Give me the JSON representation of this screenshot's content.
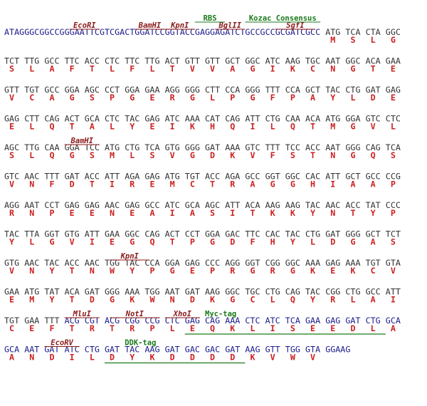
{
  "rows": [
    {
      "utr": "ATAGGGCGGCCGGGAATTCGTCGACTGGATCCGGTACCGAGGAGATCTGCCGCCGCGATCGCC",
      "codons": [
        "ATG",
        "TCA",
        "CTA",
        "GGC"
      ],
      "amino_acids": [
        "M",
        "S",
        "L",
        "G"
      ],
      "annotations": [
        {
          "label": "EcoRI",
          "color": "#8b1a1a"
        },
        {
          "label": "BamHI",
          "color": "#8b1a1a"
        },
        {
          "label": "KpnI",
          "color": "#8b1a1a"
        },
        {
          "label": "BglII",
          "color": "#8b1a1a"
        },
        {
          "label": "SgfI",
          "color": "#8b1a1a"
        },
        {
          "label": "RBS",
          "color": "#1a7a1a"
        },
        {
          "label": "Kozac Consensus",
          "color": "#1a7a1a"
        }
      ]
    },
    {
      "codons": [
        "TCT",
        "TTG",
        "GCC",
        "TTC",
        "ACC",
        "CTC",
        "TTC",
        "TTG",
        "ACT",
        "GTT",
        "GTT",
        "GCT",
        "GGC",
        "ATC",
        "AAG",
        "TGC",
        "AAT",
        "GGC",
        "ACA",
        "GAA"
      ],
      "amino_acids": [
        "S",
        "L",
        "A",
        "F",
        "T",
        "L",
        "F",
        "L",
        "T",
        "V",
        "V",
        "A",
        "G",
        "I",
        "K",
        "C",
        "N",
        "G",
        "T",
        "E"
      ]
    },
    {
      "codons": [
        "GTT",
        "TGT",
        "GCC",
        "GGA",
        "AGC",
        "CCT",
        "GGA",
        "GAA",
        "AGG",
        "GGG",
        "CTT",
        "CCA",
        "GGG",
        "TTT",
        "CCA",
        "GCT",
        "TAC",
        "CTG",
        "GAT",
        "GAG"
      ],
      "amino_acids": [
        "V",
        "C",
        "A",
        "G",
        "S",
        "P",
        "G",
        "E",
        "R",
        "G",
        "L",
        "P",
        "G",
        "F",
        "P",
        "A",
        "Y",
        "L",
        "D",
        "E"
      ]
    },
    {
      "codons": [
        "GAG",
        "CTT",
        "CAG",
        "ACT",
        "GCA",
        "CTC",
        "TAC",
        "GAG",
        "ATC",
        "AAA",
        "CAT",
        "CAG",
        "ATT",
        "CTG",
        "CAA",
        "ACA",
        "ATG",
        "GGA",
        "GTC",
        "CTC"
      ],
      "amino_acids": [
        "E",
        "L",
        "Q",
        "T",
        "A",
        "L",
        "Y",
        "E",
        "I",
        "K",
        "H",
        "Q",
        "I",
        "L",
        "Q",
        "T",
        "M",
        "G",
        "V",
        "L"
      ]
    },
    {
      "codons": [
        "AGC",
        "TTG",
        "CAA",
        "GGA",
        "TCC",
        "ATG",
        "CTG",
        "TCA",
        "GTG",
        "GGG",
        "GAT",
        "AAA",
        "GTC",
        "TTT",
        "TCC",
        "ACC",
        "AAT",
        "GGG",
        "CAG",
        "TCA"
      ],
      "amino_acids": [
        "S",
        "L",
        "Q",
        "G",
        "S",
        "M",
        "L",
        "S",
        "V",
        "G",
        "D",
        "K",
        "V",
        "F",
        "S",
        "T",
        "N",
        "G",
        "Q",
        "S"
      ],
      "annotations": [
        {
          "label": "BamHI",
          "color": "#8b1a1a"
        }
      ]
    },
    {
      "codons": [
        "GTC",
        "AAC",
        "TTT",
        "GAT",
        "ACC",
        "ATT",
        "AGA",
        "GAG",
        "ATG",
        "TGT",
        "ACC",
        "AGA",
        "GCC",
        "GGT",
        "GGC",
        "CAC",
        "ATT",
        "GCT",
        "GCC",
        "CCG"
      ],
      "amino_acids": [
        "V",
        "N",
        "F",
        "D",
        "T",
        "I",
        "R",
        "E",
        "M",
        "C",
        "T",
        "R",
        "A",
        "G",
        "G",
        "H",
        "I",
        "A",
        "A",
        "P"
      ]
    },
    {
      "codons": [
        "AGG",
        "AAT",
        "CCT",
        "GAG",
        "GAG",
        "AAC",
        "GAG",
        "GCC",
        "ATC",
        "GCA",
        "AGC",
        "ATT",
        "ACA",
        "AAG",
        "AAG",
        "TAC",
        "AAC",
        "ACC",
        "TAT",
        "CCC"
      ],
      "amino_acids": [
        "R",
        "N",
        "P",
        "E",
        "E",
        "N",
        "E",
        "A",
        "I",
        "A",
        "S",
        "I",
        "T",
        "K",
        "K",
        "Y",
        "N",
        "T",
        "Y",
        "P"
      ]
    },
    {
      "codons": [
        "TAC",
        "TTA",
        "GGT",
        "GTG",
        "ATT",
        "GAA",
        "GGC",
        "CAG",
        "ACT",
        "CCT",
        "GGA",
        "GAC",
        "TTC",
        "CAC",
        "TAC",
        "CTG",
        "GAT",
        "GGG",
        "GCT",
        "TCT"
      ],
      "amino_acids": [
        "Y",
        "L",
        "G",
        "V",
        "I",
        "E",
        "G",
        "Q",
        "T",
        "P",
        "G",
        "D",
        "F",
        "H",
        "Y",
        "L",
        "D",
        "G",
        "A",
        "S"
      ]
    },
    {
      "codons": [
        "GTG",
        "AAC",
        "TAC",
        "ACC",
        "AAC",
        "TGG",
        "TAC",
        "CCA",
        "GGA",
        "GAG",
        "CCC",
        "AGG",
        "GGT",
        "CGG",
        "GGC",
        "AAA",
        "GAG",
        "AAA",
        "TGT",
        "GTA"
      ],
      "amino_acids": [
        "V",
        "N",
        "Y",
        "T",
        "N",
        "W",
        "Y",
        "P",
        "G",
        "E",
        "P",
        "R",
        "G",
        "R",
        "G",
        "K",
        "E",
        "K",
        "C",
        "V"
      ],
      "annotations": [
        {
          "label": "KpnI",
          "color": "#8b1a1a"
        }
      ]
    },
    {
      "codons": [
        "GAA",
        "ATG",
        "TAT",
        "ACA",
        "GAT",
        "GGG",
        "AAA",
        "TGG",
        "AAT",
        "GAT",
        "AAG",
        "GGC",
        "TGC",
        "CTG",
        "CAG",
        "TAC",
        "CGG",
        "CTG",
        "GCC",
        "ATT"
      ],
      "amino_acids": [
        "E",
        "M",
        "Y",
        "T",
        "D",
        "G",
        "K",
        "W",
        "N",
        "D",
        "K",
        "G",
        "C",
        "L",
        "Q",
        "Y",
        "R",
        "L",
        "A",
        "I"
      ]
    },
    {
      "codons": [
        "TGT",
        "GAA",
        "TTT",
        "ACG",
        "CGT",
        "ACG",
        "CGG",
        "CCG",
        "CTC",
        "GAG",
        "CAG",
        "AAA",
        "CTC",
        "ATC",
        "TCA",
        "GAA",
        "GAG",
        "GAT",
        "CTG",
        "GCA"
      ],
      "amino_acids": [
        "C",
        "E",
        "F",
        "T",
        "R",
        "T",
        "R",
        "P",
        "L",
        "E",
        "Q",
        "K",
        "L",
        "I",
        "S",
        "E",
        "E",
        "D",
        "L",
        "A"
      ],
      "vector_from": 3,
      "annotations": [
        {
          "label": "MluI",
          "color": "#8b1a1a"
        },
        {
          "label": "NotI",
          "color": "#8b1a1a"
        },
        {
          "label": "XhoI",
          "color": "#8b1a1a"
        },
        {
          "label": "Myc-tag",
          "color": "#1a7a1a"
        }
      ]
    },
    {
      "codons": [
        "GCA",
        "AAT",
        "GAT",
        "ATC",
        "CTG",
        "GAT",
        "TAC",
        "AAG",
        "GAT",
        "GAC",
        "GAC",
        "GAT",
        "AAG",
        "GTT",
        "TGG",
        "GTA",
        "GGAAG"
      ],
      "amino_acids": [
        "A",
        "N",
        "D",
        "I",
        "L",
        "D",
        "Y",
        "K",
        "D",
        "D",
        "D",
        "D",
        "K",
        "V",
        "W",
        "V"
      ],
      "vector_from": 0,
      "annotations": [
        {
          "label": "EcoRV",
          "color": "#8b1a1a"
        },
        {
          "label": "DDK-tag",
          "color": "#1a7a1a"
        }
      ]
    }
  ]
}
